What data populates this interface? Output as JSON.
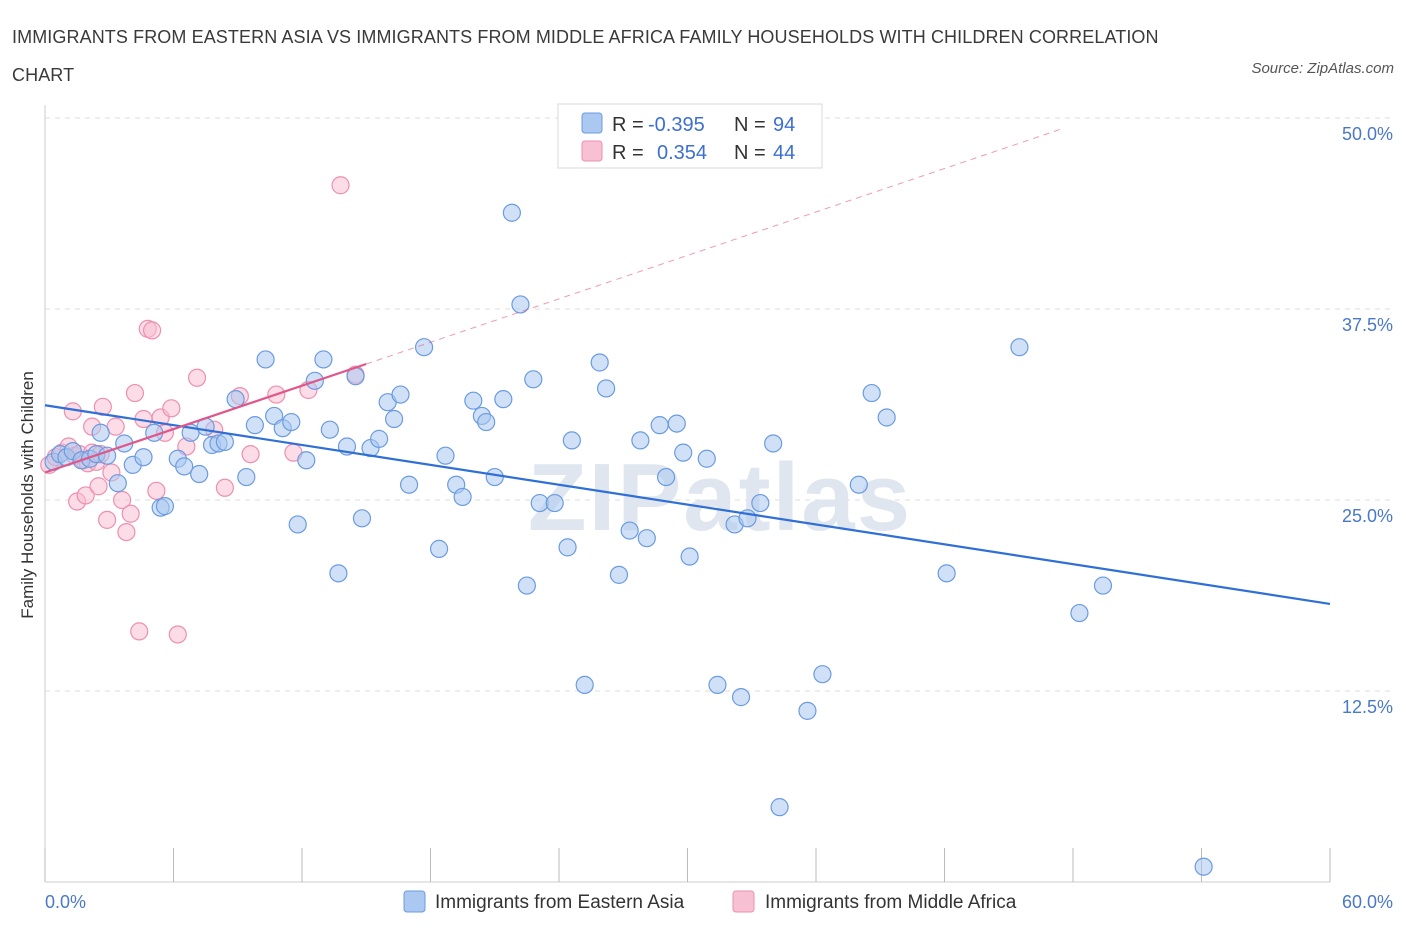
{
  "title": "IMMIGRANTS FROM EASTERN ASIA VS IMMIGRANTS FROM MIDDLE AFRICA FAMILY HOUSEHOLDS WITH CHILDREN CORRELATION CHART",
  "source": "Source: ZipAtlas.com",
  "watermark": "ZIPatlas",
  "colors": {
    "blue_fill": "#aac8f0",
    "blue_stroke": "#6b9be0",
    "blue_line": "#2f6fd6",
    "pink_fill": "#f7c0d3",
    "pink_stroke": "#ee8fb0",
    "pink_line": "#e0578a",
    "axis_text": "#4a78c8",
    "grid": "#dddddd"
  },
  "stats_box": {
    "rows": [
      {
        "r_label": "R =",
        "r_value": "-0.395",
        "n_label": "N =",
        "n_value": "94"
      },
      {
        "r_label": "R =",
        "r_value": "0.354",
        "n_label": "N =",
        "n_value": "44"
      }
    ]
  },
  "chart_data": {
    "type": "scatter",
    "xlabel": "",
    "ylabel": "Family Households with Children",
    "xlim": [
      0,
      60
    ],
    "ylim": [
      0,
      50
    ],
    "x_tick_labels": [
      "0.0%",
      "60.0%"
    ],
    "y_ticks": [
      12.5,
      25.0,
      37.5,
      50.0
    ],
    "y_tick_labels": [
      "12.5%",
      "25.0%",
      "37.5%",
      "50.0%"
    ],
    "grid": true,
    "legend_position": "bottom-center",
    "series": [
      {
        "name": "Immigrants from Eastern Asia",
        "color": "#aac8f0",
        "trend": {
          "x0": 0,
          "y0": 31.2,
          "x1": 60,
          "y1": 18.2
        },
        "points": [
          [
            0.4,
            27.5
          ],
          [
            0.7,
            28.0
          ],
          [
            1.0,
            27.8
          ],
          [
            1.3,
            28.2
          ],
          [
            1.7,
            27.6
          ],
          [
            2.1,
            27.7
          ],
          [
            2.4,
            28.0
          ],
          [
            2.6,
            29.4
          ],
          [
            2.9,
            27.9
          ],
          [
            3.4,
            26.1
          ],
          [
            3.7,
            28.7
          ],
          [
            4.1,
            27.3
          ],
          [
            4.6,
            27.8
          ],
          [
            5.1,
            29.4
          ],
          [
            5.4,
            24.5
          ],
          [
            5.6,
            24.6
          ],
          [
            6.2,
            27.7
          ],
          [
            6.5,
            27.2
          ],
          [
            6.8,
            29.4
          ],
          [
            7.2,
            26.7
          ],
          [
            7.5,
            29.8
          ],
          [
            7.8,
            28.6
          ],
          [
            8.1,
            28.7
          ],
          [
            8.4,
            28.8
          ],
          [
            8.9,
            31.6
          ],
          [
            9.4,
            26.5
          ],
          [
            9.8,
            29.9
          ],
          [
            10.3,
            34.2
          ],
          [
            10.7,
            30.5
          ],
          [
            11.1,
            29.7
          ],
          [
            11.5,
            30.1
          ],
          [
            11.8,
            23.4
          ],
          [
            12.2,
            27.6
          ],
          [
            12.6,
            32.8
          ],
          [
            13.0,
            34.2
          ],
          [
            13.3,
            29.6
          ],
          [
            13.7,
            20.2
          ],
          [
            14.1,
            28.5
          ],
          [
            14.5,
            33.1
          ],
          [
            14.8,
            23.8
          ],
          [
            15.2,
            28.4
          ],
          [
            15.6,
            29.0
          ],
          [
            16.0,
            31.4
          ],
          [
            16.3,
            30.3
          ],
          [
            16.6,
            31.9
          ],
          [
            17.0,
            26.0
          ],
          [
            17.7,
            35.0
          ],
          [
            18.4,
            21.8
          ],
          [
            18.7,
            27.9
          ],
          [
            19.2,
            26.0
          ],
          [
            19.5,
            25.2
          ],
          [
            20.0,
            31.5
          ],
          [
            20.4,
            30.5
          ],
          [
            20.6,
            30.1
          ],
          [
            21.0,
            26.5
          ],
          [
            21.4,
            31.6
          ],
          [
            21.8,
            43.8
          ],
          [
            22.2,
            37.8
          ],
          [
            22.5,
            19.4
          ],
          [
            22.8,
            32.9
          ],
          [
            23.1,
            24.8
          ],
          [
            23.8,
            24.8
          ],
          [
            24.4,
            21.9
          ],
          [
            24.6,
            28.9
          ],
          [
            25.2,
            12.9
          ],
          [
            25.9,
            34.0
          ],
          [
            26.2,
            32.3
          ],
          [
            26.8,
            20.1
          ],
          [
            27.3,
            23.0
          ],
          [
            27.8,
            28.9
          ],
          [
            28.1,
            22.5
          ],
          [
            28.7,
            29.9
          ],
          [
            29.0,
            26.5
          ],
          [
            29.5,
            30.0
          ],
          [
            29.8,
            28.1
          ],
          [
            30.1,
            21.3
          ],
          [
            30.9,
            27.7
          ],
          [
            31.4,
            12.9
          ],
          [
            32.2,
            23.4
          ],
          [
            32.5,
            12.1
          ],
          [
            32.8,
            23.8
          ],
          [
            33.4,
            24.8
          ],
          [
            34.0,
            28.7
          ],
          [
            34.3,
            4.9
          ],
          [
            35.6,
            11.2
          ],
          [
            36.3,
            13.6
          ],
          [
            38.0,
            26.0
          ],
          [
            38.6,
            32.0
          ],
          [
            39.3,
            30.4
          ],
          [
            42.1,
            20.2
          ],
          [
            45.5,
            35.0
          ],
          [
            48.3,
            17.6
          ],
          [
            49.4,
            19.4
          ],
          [
            54.1,
            1.0
          ]
        ]
      },
      {
        "name": "Immigrants from Middle Africa",
        "color": "#f7c0d3",
        "trend": {
          "x0": 0,
          "y0": 26.8,
          "x1": 15,
          "y1": 33.9
        },
        "trend_extension": {
          "x0": 15,
          "y0": 33.9,
          "x1": 47.5,
          "y1": 49.3
        },
        "points": [
          [
            0.2,
            27.3
          ],
          [
            0.5,
            27.8
          ],
          [
            0.8,
            28.1
          ],
          [
            1.1,
            28.5
          ],
          [
            1.4,
            27.9
          ],
          [
            1.6,
            28.0
          ],
          [
            1.8,
            27.6
          ],
          [
            2.0,
            27.4
          ],
          [
            2.2,
            28.1
          ],
          [
            2.4,
            27.5
          ],
          [
            2.6,
            28.0
          ],
          [
            1.3,
            30.8
          ],
          [
            1.5,
            24.9
          ],
          [
            1.9,
            25.3
          ],
          [
            2.2,
            29.8
          ],
          [
            2.5,
            25.9
          ],
          [
            2.7,
            31.1
          ],
          [
            2.9,
            23.7
          ],
          [
            3.1,
            26.8
          ],
          [
            3.3,
            29.8
          ],
          [
            3.6,
            25.0
          ],
          [
            3.8,
            22.9
          ],
          [
            4.0,
            24.1
          ],
          [
            4.2,
            32.0
          ],
          [
            4.4,
            16.4
          ],
          [
            4.6,
            30.3
          ],
          [
            4.8,
            36.2
          ],
          [
            5.0,
            36.1
          ],
          [
            5.2,
            25.6
          ],
          [
            5.4,
            30.4
          ],
          [
            5.6,
            29.4
          ],
          [
            5.9,
            31.0
          ],
          [
            6.2,
            16.2
          ],
          [
            6.6,
            28.5
          ],
          [
            7.1,
            33.0
          ],
          [
            7.9,
            29.6
          ],
          [
            8.4,
            25.8
          ],
          [
            9.1,
            31.8
          ],
          [
            9.6,
            28.0
          ],
          [
            10.8,
            31.9
          ],
          [
            11.6,
            28.1
          ],
          [
            12.3,
            32.2
          ],
          [
            14.5,
            33.2
          ],
          [
            13.8,
            45.6
          ]
        ]
      }
    ]
  },
  "legend": {
    "items": [
      {
        "label": "Immigrants from Eastern Asia"
      },
      {
        "label": "Immigrants from Middle Africa"
      }
    ]
  }
}
